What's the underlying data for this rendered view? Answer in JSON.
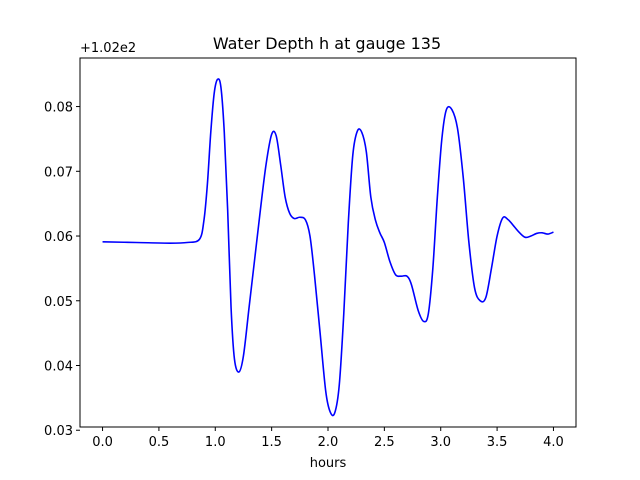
{
  "chart_data": {
    "type": "line",
    "title": "Water Depth h at gauge 135",
    "xlabel": "hours",
    "ylabel": "",
    "y_offset_label": "+1.02e2",
    "y_offset": 102.0,
    "xlim": [
      -0.2,
      4.2
    ],
    "ylim": [
      0.0305,
      0.0875
    ],
    "x_ticks": [
      0.0,
      0.5,
      1.0,
      1.5,
      2.0,
      2.5,
      3.0,
      3.5,
      4.0
    ],
    "x_tick_labels": [
      "0.0",
      "0.5",
      "1.0",
      "1.5",
      "2.0",
      "2.5",
      "3.0",
      "3.5",
      "4.0"
    ],
    "y_ticks": [
      0.03,
      0.04,
      0.05,
      0.06,
      0.07,
      0.08
    ],
    "y_tick_labels": [
      "0.03",
      "0.04",
      "0.05",
      "0.06",
      "0.07",
      "0.08"
    ],
    "grid": false,
    "legend": "none",
    "series": [
      {
        "color": "#0000ff",
        "x": [
          0.0,
          0.3,
          0.6,
          0.75,
          0.86,
          0.9,
          0.93,
          0.96,
          0.99,
          1.02,
          1.05,
          1.08,
          1.11,
          1.14,
          1.17,
          1.21,
          1.25,
          1.3,
          1.35,
          1.4,
          1.45,
          1.5,
          1.54,
          1.58,
          1.62,
          1.66,
          1.7,
          1.75,
          1.8,
          1.84,
          1.88,
          1.93,
          1.98,
          2.02,
          2.06,
          2.1,
          2.14,
          2.18,
          2.22,
          2.26,
          2.3,
          2.34,
          2.38,
          2.42,
          2.46,
          2.5,
          2.55,
          2.6,
          2.65,
          2.7,
          2.74,
          2.8,
          2.85,
          2.89,
          2.93,
          2.97,
          3.01,
          3.05,
          3.1,
          3.15,
          3.2,
          3.25,
          3.3,
          3.35,
          3.4,
          3.45,
          3.5,
          3.55,
          3.6,
          3.65,
          3.7,
          3.75,
          3.8,
          3.85,
          3.9,
          3.95,
          4.0
        ],
        "y": [
          0.0591,
          0.059,
          0.0589,
          0.059,
          0.0595,
          0.0625,
          0.068,
          0.076,
          0.082,
          0.0842,
          0.083,
          0.076,
          0.064,
          0.049,
          0.041,
          0.039,
          0.0415,
          0.049,
          0.0565,
          0.064,
          0.071,
          0.0757,
          0.0755,
          0.071,
          0.066,
          0.0635,
          0.0627,
          0.0629,
          0.0625,
          0.06,
          0.054,
          0.045,
          0.036,
          0.0328,
          0.0327,
          0.037,
          0.048,
          0.062,
          0.0725,
          0.0762,
          0.076,
          0.073,
          0.066,
          0.0625,
          0.0605,
          0.059,
          0.056,
          0.054,
          0.0538,
          0.0538,
          0.0525,
          0.0485,
          0.0468,
          0.048,
          0.055,
          0.066,
          0.075,
          0.0795,
          0.0795,
          0.0765,
          0.069,
          0.059,
          0.052,
          0.05,
          0.0505,
          0.055,
          0.06,
          0.0628,
          0.0625,
          0.0615,
          0.0605,
          0.0598,
          0.06,
          0.0604,
          0.0605,
          0.0603,
          0.0606
        ]
      }
    ]
  }
}
